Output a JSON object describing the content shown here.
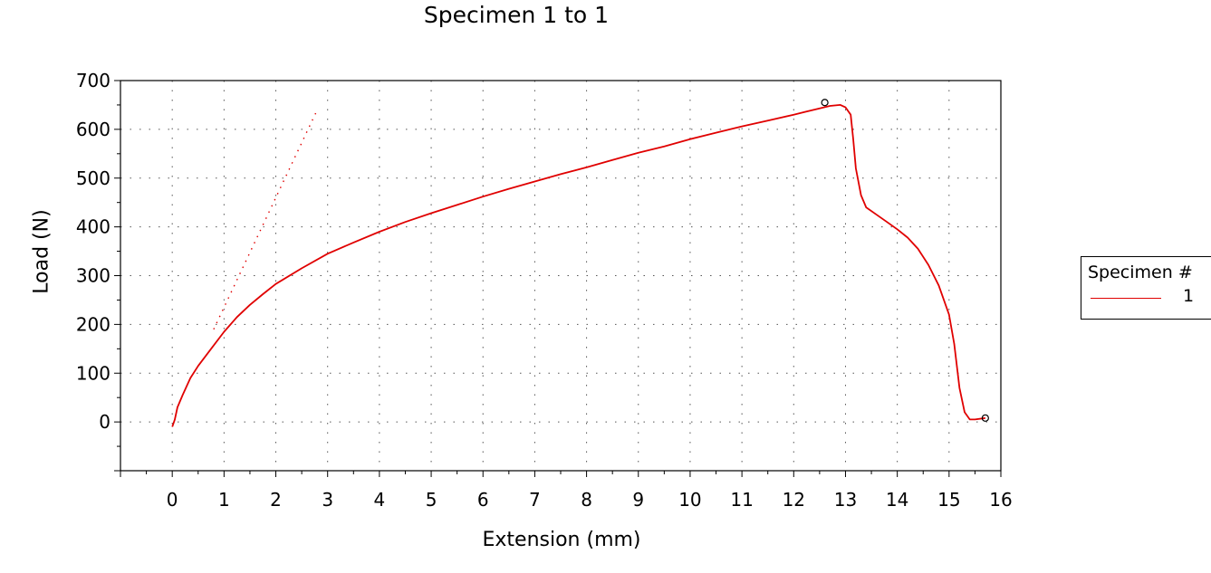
{
  "chart_data": {
    "type": "line",
    "title": "Specimen 1 to 1",
    "xlabel": "Extension (mm)",
    "ylabel": "Load (N)",
    "xlim": [
      -1,
      16
    ],
    "ylim": [
      -100,
      700
    ],
    "x_ticks": [
      "0",
      "1",
      "2",
      "3",
      "4",
      "5",
      "6",
      "7",
      "8",
      "9",
      "10",
      "11",
      "12",
      "13",
      "14",
      "15",
      "16"
    ],
    "y_ticks": [
      "0",
      "100",
      "200",
      "300",
      "400",
      "500",
      "600",
      "700"
    ],
    "grid": true,
    "legend": {
      "title": "Specimen #",
      "placement": "right",
      "entries": [
        "1"
      ]
    },
    "series": [
      {
        "name": "1",
        "color": "#e00000",
        "x": [
          0,
          0.05,
          0.1,
          0.2,
          0.35,
          0.5,
          0.75,
          1,
          1.25,
          1.5,
          1.75,
          2,
          2.5,
          3,
          3.5,
          4,
          4.5,
          5,
          5.5,
          6,
          6.5,
          7,
          7.5,
          8,
          8.5,
          9,
          9.5,
          10,
          10.5,
          11,
          11.5,
          12,
          12.5,
          12.7,
          12.9,
          13.0,
          13.1,
          13.15,
          13.2,
          13.3,
          13.4,
          13.6,
          13.8,
          14,
          14.2,
          14.4,
          14.6,
          14.8,
          15,
          15.1,
          15.2,
          15.3,
          15.4,
          15.5,
          15.7
        ],
        "y": [
          -10,
          5,
          30,
          55,
          90,
          115,
          150,
          185,
          215,
          240,
          262,
          283,
          315,
          345,
          368,
          390,
          410,
          428,
          445,
          462,
          478,
          493,
          508,
          522,
          537,
          552,
          565,
          580,
          593,
          606,
          618,
          630,
          643,
          648,
          650,
          645,
          630,
          580,
          520,
          465,
          440,
          425,
          410,
          395,
          378,
          355,
          322,
          280,
          220,
          160,
          70,
          20,
          5,
          5,
          8
        ]
      }
    ],
    "reference_line": {
      "style": "dotted",
      "color": "#e00000",
      "x": [
        0.8,
        2.8
      ],
      "y": [
        190,
        640
      ]
    },
    "markers": [
      {
        "x": 12.6,
        "y": 655
      },
      {
        "x": 15.7,
        "y": 8
      }
    ]
  }
}
